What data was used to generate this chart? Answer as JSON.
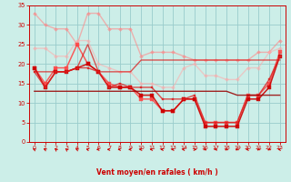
{
  "xlabel": "Vent moyen/en rafales ( km/h )",
  "bg_color": "#cceee8",
  "grid_color": "#99cccc",
  "x_ticks": [
    0,
    1,
    2,
    3,
    4,
    5,
    6,
    7,
    8,
    9,
    10,
    11,
    12,
    13,
    14,
    15,
    16,
    17,
    18,
    19,
    20,
    21,
    22,
    23
  ],
  "ylim": [
    0,
    35
  ],
  "yticks": [
    0,
    5,
    10,
    15,
    20,
    25,
    30,
    35
  ],
  "series": [
    {
      "color": "#ff8888",
      "alpha": 0.6,
      "linewidth": 1.0,
      "marker": "D",
      "markersize": 2.0,
      "data": [
        33,
        30,
        29,
        29,
        25,
        33,
        33,
        29,
        29,
        29,
        22,
        23,
        23,
        23,
        22,
        21,
        21,
        21,
        21,
        21,
        21,
        23,
        23,
        26
      ]
    },
    {
      "color": "#ffaaaa",
      "alpha": 0.55,
      "linewidth": 1.0,
      "marker": "D",
      "markersize": 2.0,
      "data": [
        24,
        24,
        22,
        22,
        26,
        26,
        20,
        19,
        18,
        18,
        15,
        15,
        14,
        14,
        19,
        20,
        17,
        17,
        16,
        16,
        19,
        19,
        23,
        24
      ]
    },
    {
      "color": "#ff4444",
      "alpha": 0.85,
      "linewidth": 1.1,
      "marker": "s",
      "markersize": 2.2,
      "data": [
        19,
        15,
        19,
        19,
        25,
        20,
        18,
        15,
        14,
        14,
        11,
        11,
        8,
        8,
        11,
        11,
        5,
        5,
        5,
        5,
        12,
        12,
        15,
        23
      ]
    },
    {
      "color": "#cc0000",
      "alpha": 0.9,
      "linewidth": 1.1,
      "marker": "s",
      "markersize": 2.2,
      "data": [
        19,
        14,
        18,
        18,
        19,
        20,
        18,
        14,
        14,
        14,
        12,
        12,
        8,
        8,
        11,
        11,
        4,
        4,
        4,
        4,
        11,
        11,
        14,
        22
      ]
    },
    {
      "color": "#dd2222",
      "alpha": 0.8,
      "linewidth": 1.0,
      "marker": "s",
      "markersize": 2.0,
      "data": [
        18,
        14,
        18,
        18,
        19,
        19,
        18,
        14,
        15,
        14,
        14,
        14,
        11,
        11,
        11,
        12,
        5,
        5,
        5,
        5,
        12,
        12,
        16,
        22
      ]
    },
    {
      "color": "#dd1111",
      "alpha": 0.7,
      "linewidth": 1.0,
      "marker": "None",
      "markersize": 0,
      "data": [
        18,
        18,
        18,
        18,
        19,
        25,
        18,
        18,
        18,
        18,
        21,
        21,
        21,
        21,
        21,
        21,
        21,
        21,
        21,
        21,
        21,
        21,
        21,
        21
      ]
    },
    {
      "color": "#990000",
      "alpha": 0.85,
      "linewidth": 1.0,
      "marker": "None",
      "markersize": 0,
      "data": [
        13,
        13,
        13,
        13,
        13,
        13,
        13,
        13,
        13,
        13,
        13,
        13,
        13,
        13,
        13,
        13,
        13,
        13,
        13,
        12,
        12,
        12,
        12,
        12
      ]
    }
  ],
  "wind_angles": [
    225,
    225,
    210,
    210,
    225,
    240,
    270,
    270,
    270,
    270,
    270,
    270,
    270,
    270,
    255,
    90,
    45,
    30,
    315,
    315,
    270,
    315,
    315,
    255
  ]
}
